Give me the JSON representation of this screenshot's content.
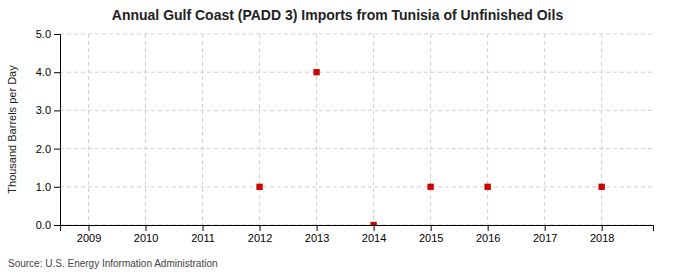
{
  "chart_data": {
    "type": "scatter",
    "title": "Annual Gulf Coast (PADD 3) Imports from Tunisia of Unfinished Oils",
    "ylabel": "Thousand Barrels per Day",
    "source": "Source: U.S. Energy Information Administration",
    "x": [
      2009,
      2010,
      2011,
      2012,
      2013,
      2014,
      2015,
      2016,
      2017,
      2018
    ],
    "values": [
      null,
      null,
      null,
      1.0,
      4.0,
      0.0,
      1.0,
      1.0,
      null,
      1.0
    ],
    "color": "#cc0000",
    "marker": "square",
    "xlim": [
      2008.5,
      2018.9
    ],
    "xticks": [
      2009,
      2010,
      2011,
      2012,
      2013,
      2014,
      2015,
      2016,
      2017,
      2018
    ],
    "ylim": [
      0.0,
      5.0
    ],
    "yticks": [
      {
        "value": 0.0,
        "label": "0.0"
      },
      {
        "value": 1.0,
        "label": "1.0"
      },
      {
        "value": 2.0,
        "label": "2.0"
      },
      {
        "value": 3.0,
        "label": "3.0"
      },
      {
        "value": 4.0,
        "label": "4.0"
      },
      {
        "value": 5.0,
        "label": "5.0"
      }
    ],
    "grid": true
  }
}
